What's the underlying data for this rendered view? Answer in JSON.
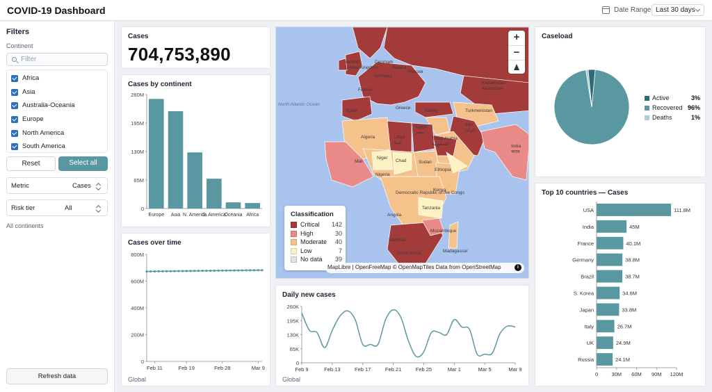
{
  "header": {
    "title": "COVID-19 Dashboard",
    "date_range_label": "Date Range",
    "date_range_value": "Last 30 days"
  },
  "sidebar": {
    "title": "Filters",
    "continent_label": "Continent",
    "filter_placeholder": "Filter",
    "continents": [
      "Africa",
      "Asia",
      "Australia-Oceania",
      "Europe",
      "North America",
      "South America"
    ],
    "reset_label": "Reset",
    "select_all_label": "Select all",
    "metric_label": "Metric",
    "metric_value": "Cases",
    "risk_label": "Risk tier",
    "risk_value": "All",
    "all_continents_text": "All continents",
    "refresh_label": "Refresh data"
  },
  "cases_card": {
    "title": "Cases",
    "value": "704,753,890"
  },
  "colors": {
    "accent": "#5a98a1",
    "critical": "#a33b3b",
    "high": "#e98a88",
    "moderate": "#f5c28c",
    "low": "#fdf2c2",
    "no_data": "#dde2e6",
    "ocean": "#a9c3ef"
  },
  "chart_data": [
    {
      "id": "cases_by_continent",
      "type": "bar",
      "title": "Cases by continent",
      "categories": [
        "Europe",
        "Asia",
        "N. America",
        "S. America",
        "Oceania",
        "Africa"
      ],
      "values": [
        250000000,
        222000000,
        128000000,
        68000000,
        14000000,
        12500000
      ],
      "yticks": [
        "0",
        "65M",
        "130M",
        "195M",
        "260M"
      ],
      "ylim": [
        0,
        260000000
      ]
    },
    {
      "id": "cases_over_time",
      "type": "line",
      "title": "Cases over time",
      "x": [
        "Feb 9",
        "Feb 10",
        "Feb 11",
        "Feb 12",
        "Feb 13",
        "Feb 14",
        "Feb 15",
        "Feb 16",
        "Feb 17",
        "Feb 18",
        "Feb 19",
        "Feb 20",
        "Feb 21",
        "Feb 22",
        "Feb 23",
        "Feb 24",
        "Feb 25",
        "Feb 26",
        "Feb 27",
        "Feb 28",
        "Mar 1",
        "Mar 2",
        "Mar 3",
        "Mar 4",
        "Mar 5",
        "Mar 6",
        "Mar 7",
        "Mar 8",
        "Mar 9",
        "Mar 10"
      ],
      "values": [
        672000000,
        672500000,
        673000000,
        673300000,
        673600000,
        674000000,
        674400000,
        674800000,
        675100000,
        675500000,
        675800000,
        676200000,
        676600000,
        677000000,
        677300000,
        677600000,
        677900000,
        678300000,
        678600000,
        679000000,
        679300000,
        679600000,
        679900000,
        680300000,
        680600000,
        680900000,
        681200000,
        681500000,
        681800000,
        682100000
      ],
      "xticks": [
        "Feb 11",
        "Feb 19",
        "Feb 28",
        "Mar 9"
      ],
      "yticks": [
        "0",
        "200M",
        "400M",
        "600M",
        "800M"
      ],
      "ylim": [
        0,
        800000000
      ],
      "footer": "Global"
    },
    {
      "id": "daily_new_cases",
      "type": "line",
      "title": "Daily new cases",
      "x": [
        "Feb 9",
        "Feb 10",
        "Feb 11",
        "Feb 12",
        "Feb 13",
        "Feb 14",
        "Feb 15",
        "Feb 16",
        "Feb 17",
        "Feb 18",
        "Feb 19",
        "Feb 20",
        "Feb 21",
        "Feb 22",
        "Feb 23",
        "Feb 24",
        "Feb 25",
        "Feb 26",
        "Feb 27",
        "Feb 28",
        "Mar 1",
        "Mar 2",
        "Mar 3",
        "Mar 4",
        "Mar 5",
        "Mar 6",
        "Mar 7",
        "Mar 8",
        "Mar 9"
      ],
      "values": [
        230000,
        150000,
        140000,
        70000,
        150000,
        215000,
        240000,
        200000,
        85000,
        85000,
        85000,
        200000,
        245000,
        210000,
        100000,
        30000,
        50000,
        140000,
        140000,
        130000,
        200000,
        165000,
        155000,
        40000,
        40000,
        45000,
        135000,
        170000,
        165000
      ],
      "xticks": [
        "Feb 9",
        "Feb 13",
        "Feb 17",
        "Feb 21",
        "Feb 25",
        "Mar 1",
        "Mar 5",
        "Mar 9"
      ],
      "yticks": [
        "0",
        "65K",
        "130K",
        "195K",
        "260K"
      ],
      "ylim": [
        0,
        260000
      ],
      "footer": "Global"
    },
    {
      "id": "caseload",
      "type": "pie",
      "title": "Caseload",
      "labels": [
        "Active",
        "Recovered",
        "Deaths"
      ],
      "values": [
        3,
        96,
        1
      ],
      "display": [
        "3%",
        "96%",
        "1%"
      ],
      "colors": [
        "#2f6b74",
        "#5a98a1",
        "#a9cdd3"
      ]
    },
    {
      "id": "top10",
      "type": "bar",
      "orientation": "horizontal",
      "title": "Top 10 countries — Cases",
      "categories": [
        "USA",
        "India",
        "France",
        "Germany",
        "Brazil",
        "S. Korea",
        "Japan",
        "Italy",
        "UK",
        "Russia"
      ],
      "values": [
        111800000,
        45000000,
        40100000,
        38800000,
        38700000,
        34600000,
        33800000,
        26700000,
        24900000,
        24100000
      ],
      "labels": [
        "111.8M",
        "45M",
        "40.1M",
        "38.8M",
        "38.7M",
        "34.6M",
        "33.8M",
        "26.7M",
        "24.9M",
        "24.1M"
      ],
      "xticks": [
        "0",
        "30M",
        "60M",
        "90M",
        "120M"
      ],
      "xlim": [
        0,
        120000000
      ]
    }
  ],
  "map": {
    "classification_title": "Classification",
    "classes": [
      {
        "name": "Critical",
        "count": "142",
        "color": "#a33b3b"
      },
      {
        "name": "High",
        "count": "30",
        "color": "#e98a88"
      },
      {
        "name": "Moderate",
        "count": "40",
        "color": "#f5c28c"
      },
      {
        "name": "Low",
        "count": "7",
        "color": "#fdf2c2"
      },
      {
        "name": "No data",
        "count": "39",
        "color": "#dde2e6"
      }
    ],
    "attribution": "MapLibre | OpenFreeMap © OpenMapTiles Data from OpenStreetMap",
    "labels": [
      "Ireland",
      "United Kingdom",
      "Denmark",
      "Poland",
      "Россия",
      "Germany",
      "France",
      "Kazakhstan",
      "Казахстан",
      "Spain",
      "Greece",
      "Turkey",
      "Turkmenistan",
      "Iran",
      "ایران",
      "Algeria",
      "Libya",
      "ليبيا",
      "Egypt",
      "مصر",
      "Saudi Arabia",
      "السعودية",
      "India",
      "भारत",
      "Mali",
      "Niger",
      "Chad",
      "Sudan",
      "Ethiopia",
      "Nigeria",
      "Kenya",
      "Democratic Republic of the Congo",
      "Tanzania",
      "Angola",
      "Namibia",
      "South Africa",
      "Madagascar",
      "Mozambique",
      "North Atlantic Ocean"
    ],
    "zoom_in": "+",
    "zoom_out": "−"
  }
}
